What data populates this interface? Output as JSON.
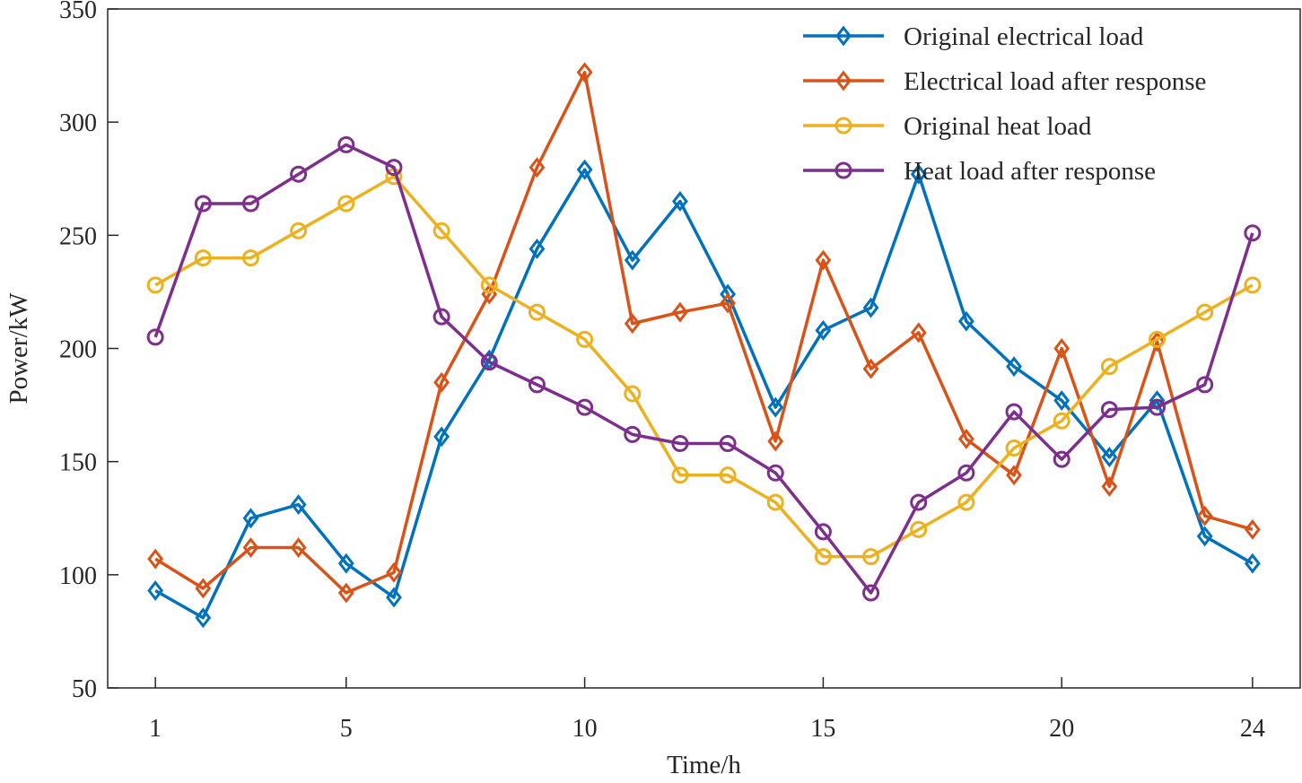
{
  "chart_data": {
    "type": "line",
    "title": "",
    "xlabel": "Time/h",
    "ylabel": "Power/kW",
    "xlim": [
      0,
      25
    ],
    "ylim": [
      50,
      350
    ],
    "xticks": [
      1,
      5,
      10,
      15,
      20,
      24
    ],
    "yticks": [
      50,
      100,
      150,
      200,
      250,
      300,
      350
    ],
    "grid": false,
    "legend_position": "top-right",
    "x": [
      1,
      2,
      3,
      4,
      5,
      6,
      7,
      8,
      9,
      10,
      11,
      12,
      13,
      14,
      15,
      16,
      17,
      18,
      19,
      20,
      21,
      22,
      23,
      24
    ],
    "series": [
      {
        "name": "Original electrical load",
        "color": "#0072BD",
        "marker": "diamond",
        "values": [
          93,
          81,
          125,
          131,
          105,
          90,
          161,
          195,
          244,
          279,
          239,
          265,
          224,
          174,
          208,
          218,
          277,
          212,
          192,
          177,
          152,
          177,
          117,
          105
        ]
      },
      {
        "name": "Electrical load after response",
        "color": "#D95319",
        "marker": "diamond",
        "values": [
          107,
          94,
          112,
          112,
          92,
          101,
          185,
          224,
          280,
          322,
          211,
          216,
          220,
          159,
          239,
          191,
          207,
          160,
          144,
          200,
          139,
          203,
          126,
          120
        ]
      },
      {
        "name": "Original heat load",
        "color": "#EDB120",
        "marker": "circle",
        "values": [
          228,
          240,
          240,
          252,
          264,
          276,
          252,
          228,
          216,
          204,
          180,
          144,
          144,
          132,
          108,
          108,
          120,
          132,
          156,
          168,
          192,
          204,
          216,
          228
        ]
      },
      {
        "name": "Heat load after response",
        "color": "#7E2F8E",
        "marker": "circle",
        "values": [
          205,
          264,
          264,
          277,
          290,
          280,
          214,
          194,
          184,
          174,
          162,
          158,
          158,
          145,
          119,
          92,
          132,
          145,
          172,
          151,
          173,
          174,
          184,
          251
        ]
      }
    ]
  }
}
